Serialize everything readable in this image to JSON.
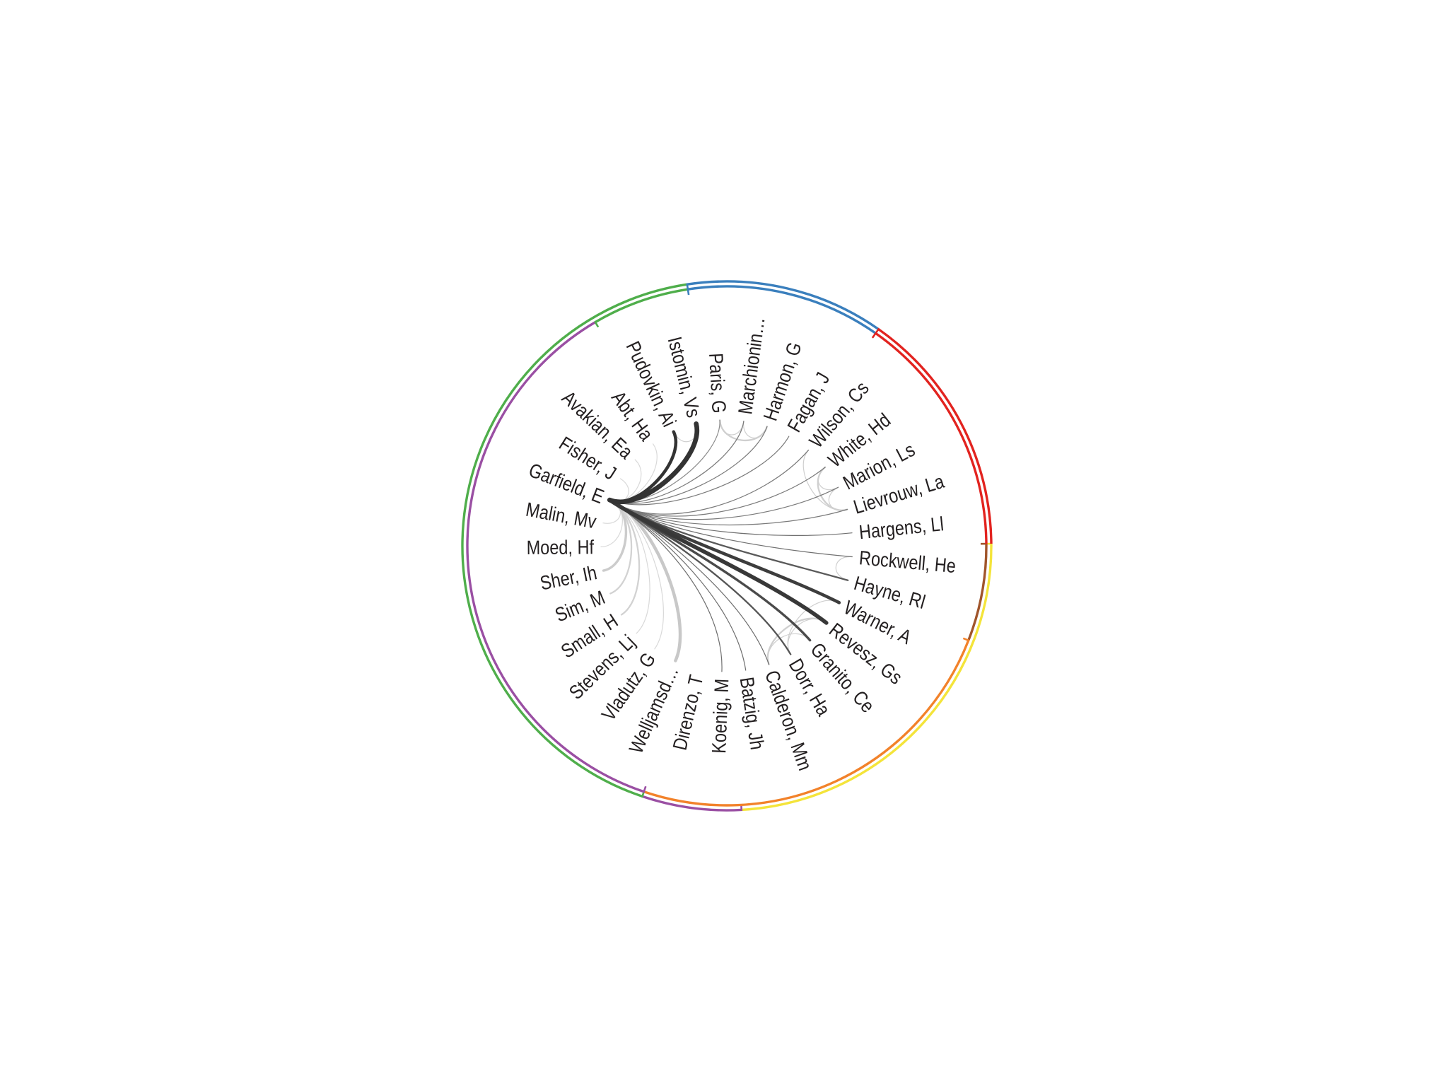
{
  "diagram": {
    "label_color": "#231f20",
    "nodes": [
      "Rockwell, He",
      "Hayne, Rl",
      "Warner, A",
      "Revesz, Gs",
      "Granito, Ce",
      "Dorr, Ha",
      "Calderon, Mm",
      "Batzig, Jh",
      "Koenig, M",
      "Direnzo, T",
      "Welljamsd…",
      "Vladutz, G",
      "Stevens, Lj",
      "Small, H",
      "Sim, M",
      "Sher, Ih",
      "Moed, Hf",
      "Malin, Mv",
      "Garfield, E",
      "Fisher, J",
      "Avakian, Ea",
      "Abt, Ha",
      "Pudovkin, Ai",
      "Istomin, Vs",
      "Paris, G",
      "Marchionin…",
      "Harmon, G",
      "Fagan, J",
      "Wilson, Cs",
      "White, Hd",
      "Marion, Ls",
      "Lievrouw, La",
      "Hargens, Ll"
    ],
    "outer_ring": [
      {
        "color": "#f4e43a",
        "from": "Rockwell, He",
        "to": "Batzig, Jh"
      },
      {
        "color": "#9a4fa3",
        "from": "Koenig, M",
        "to": "Direnzo, T"
      },
      {
        "color": "#4fae4b",
        "from": "Welljamsd…",
        "to": "Istomin, Vs"
      },
      {
        "color": "#3a7fbd",
        "from": "Paris, G",
        "to": "Fagan, J"
      },
      {
        "color": "#e2231f",
        "from": "Wilson, Cs",
        "to": "Hargens, Ll"
      }
    ],
    "inner_ring": [
      {
        "color": "#a0552b",
        "from": "Rockwell, He",
        "to": "Hayne, Rl"
      },
      {
        "color": "#f2822a",
        "from": "Warner, A",
        "to": "Direnzo, T"
      },
      {
        "color": "#9a4fa3",
        "from": "Welljamsd…",
        "to": "Abt, Ha"
      },
      {
        "color": "#4fae4b",
        "from": "Pudovkin, Ai",
        "to": "Istomin, Vs"
      },
      {
        "color": "#3a7fbd",
        "from": "Paris, G",
        "to": "Fagan, J"
      },
      {
        "color": "#e2231f",
        "from": "Wilson, Cs",
        "to": "Hargens, Ll"
      }
    ],
    "edges": [
      {
        "source": "Garfield, E",
        "target": "Abt, Ha",
        "weight": 1,
        "color": "#d9d9d9"
      },
      {
        "source": "Garfield, E",
        "target": "Avakian, Ea",
        "weight": 1,
        "color": "#d9d9d9"
      },
      {
        "source": "Garfield, E",
        "target": "Fisher, J",
        "weight": 1,
        "color": "#d9d9d9"
      },
      {
        "source": "Garfield, E",
        "target": "Malin, Mv",
        "weight": 1,
        "color": "#d9d9d9"
      },
      {
        "source": "Garfield, E",
        "target": "Moed, Hf",
        "weight": 1,
        "color": "#d9d9d9"
      },
      {
        "source": "Garfield, E",
        "target": "Stevens, Lj",
        "weight": 1,
        "color": "#d9d9d9"
      },
      {
        "source": "Garfield, E",
        "target": "Vladutz, G",
        "weight": 1,
        "color": "#d9d9d9"
      },
      {
        "source": "Garfield, E",
        "target": "Small, H",
        "weight": 2,
        "color": "#d2d2d2"
      },
      {
        "source": "Garfield, E",
        "target": "Sim, M",
        "weight": 2,
        "color": "#d2d2d2"
      },
      {
        "source": "Garfield, E",
        "target": "Sher, Ih",
        "weight": 3,
        "color": "#cccccc"
      },
      {
        "source": "Garfield, E",
        "target": "Welljamsd…",
        "weight": 4,
        "color": "#c8c8c8"
      },
      {
        "source": "Pudovkin, Ai",
        "target": "Istomin, Vs",
        "weight": 1,
        "color": "#cfcfcf"
      },
      {
        "source": "Paris, G",
        "target": "Marchionin…",
        "weight": 1,
        "color": "#cfcfcf"
      },
      {
        "source": "Paris, G",
        "target": "Harmon, G",
        "weight": 2,
        "color": "#cfcfcf"
      },
      {
        "source": "Marchionin…",
        "target": "Harmon, G",
        "weight": 1,
        "color": "#cfcfcf"
      },
      {
        "source": "White, Hd",
        "target": "Marion, Ls",
        "weight": 1,
        "color": "#cfcfcf"
      },
      {
        "source": "White, Hd",
        "target": "Lievrouw, La",
        "weight": 2,
        "color": "#cfcfcf"
      },
      {
        "source": "Marion, Ls",
        "target": "Lievrouw, La",
        "weight": 1,
        "color": "#cfcfcf"
      },
      {
        "source": "Wilson, Cs",
        "target": "Lievrouw, La",
        "weight": 1,
        "color": "#cfcfcf"
      },
      {
        "source": "Rockwell, He",
        "target": "Hayne, Rl",
        "weight": 1,
        "color": "#cfcfcf"
      },
      {
        "source": "Warner, A",
        "target": "Dorr, Ha",
        "weight": 1,
        "color": "#cfcfcf"
      },
      {
        "source": "Revesz, Gs",
        "target": "Calderon, Mm",
        "weight": 2,
        "color": "#cfcfcf"
      },
      {
        "source": "Granito, Ce",
        "target": "Calderon, Mm",
        "weight": 1,
        "color": "#cfcfcf"
      },
      {
        "source": "Revesz, Gs",
        "target": "Dorr, Ha",
        "weight": 1,
        "color": "#cfcfcf"
      },
      {
        "source": "Garfield, E",
        "target": "Paris, G",
        "weight": 1,
        "color": "#8c8c8c"
      },
      {
        "source": "Garfield, E",
        "target": "Marchionin…",
        "weight": 1,
        "color": "#7a7a7a"
      },
      {
        "source": "Garfield, E",
        "target": "Harmon, G",
        "weight": 1,
        "color": "#7a7a7a"
      },
      {
        "source": "Garfield, E",
        "target": "Fagan, J",
        "weight": 1,
        "color": "#7a7a7a"
      },
      {
        "source": "Garfield, E",
        "target": "Wilson, Cs",
        "weight": 1,
        "color": "#7a7a7a"
      },
      {
        "source": "Garfield, E",
        "target": "White, Hd",
        "weight": 1,
        "color": "#7a7a7a"
      },
      {
        "source": "Garfield, E",
        "target": "Marion, Ls",
        "weight": 1,
        "color": "#7a7a7a"
      },
      {
        "source": "Garfield, E",
        "target": "Lievrouw, La",
        "weight": 1,
        "color": "#7a7a7a"
      },
      {
        "source": "Garfield, E",
        "target": "Hargens, Ll",
        "weight": 1,
        "color": "#707070"
      },
      {
        "source": "Garfield, E",
        "target": "Rockwell, He",
        "weight": 1,
        "color": "#707070"
      },
      {
        "source": "Garfield, E",
        "target": "Koenig, M",
        "weight": 1,
        "color": "#6e6e6e"
      },
      {
        "source": "Garfield, E",
        "target": "Batzig, Jh",
        "weight": 1,
        "color": "#6e6e6e"
      },
      {
        "source": "Garfield, E",
        "target": "Calderon, Mm",
        "weight": 1,
        "color": "#6e6e6e"
      },
      {
        "source": "Garfield, E",
        "target": "Hayne, Rl",
        "weight": 2,
        "color": "#5a5a5a"
      },
      {
        "source": "Garfield, E",
        "target": "Dorr, Ha",
        "weight": 2,
        "color": "#555555"
      },
      {
        "source": "Garfield, E",
        "target": "Granito, Ce",
        "weight": 3,
        "color": "#4a4a4a"
      },
      {
        "source": "Garfield, E",
        "target": "Warner, A",
        "weight": 4,
        "color": "#3d3d3d"
      },
      {
        "source": "Garfield, E",
        "target": "Revesz, Gs",
        "weight": 5,
        "color": "#383838"
      },
      {
        "source": "Garfield, E",
        "target": "Pudovkin, Ai",
        "weight": 4,
        "color": "#333333"
      },
      {
        "source": "Garfield, E",
        "target": "Istomin, Vs",
        "weight": 6,
        "color": "#333333"
      }
    ]
  }
}
